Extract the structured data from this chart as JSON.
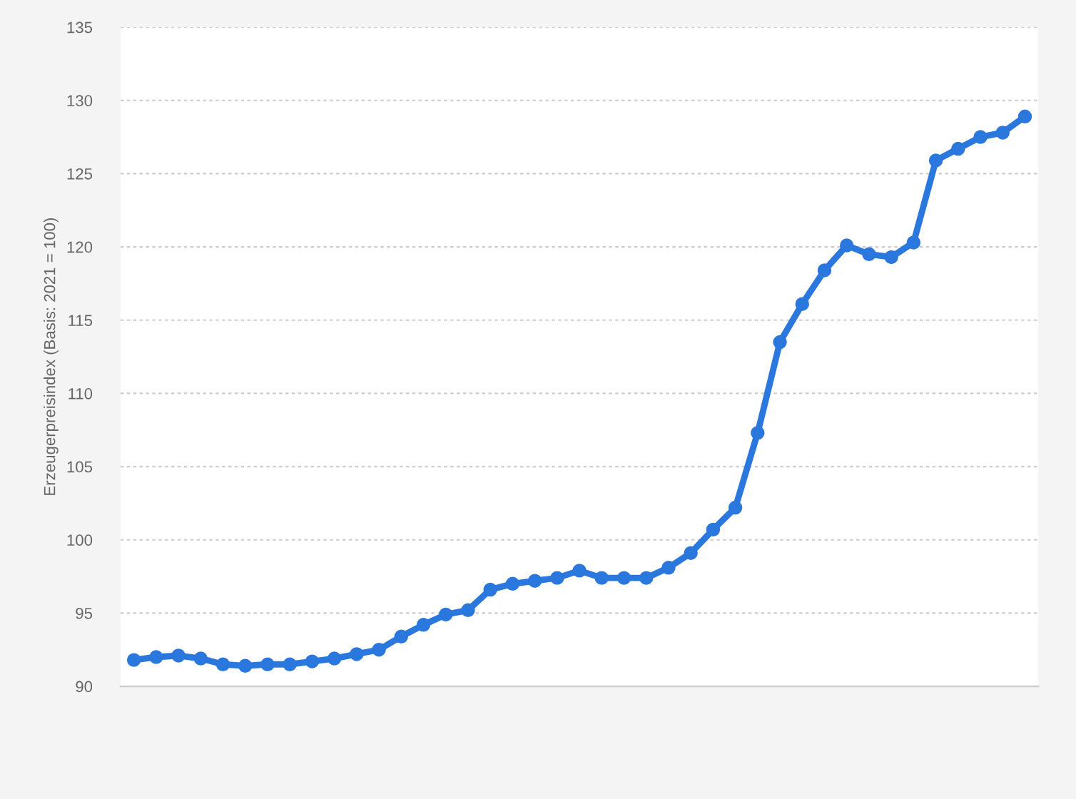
{
  "chart_data": {
    "type": "line",
    "ylabel": "Erzeugerpreisindex (Basis: 2021 = 100)",
    "categories": [
      null,
      null,
      null,
      null,
      null,
      null,
      null,
      null,
      null,
      null,
      null,
      null,
      null,
      null,
      null,
      null,
      null,
      null,
      null,
      null,
      null,
      null,
      null,
      null,
      null,
      null,
      null,
      null,
      null,
      null,
      null,
      null,
      null,
      null,
      null,
      null,
      null,
      null,
      null,
      null,
      null
    ],
    "series": [
      {
        "color": "#2a78de",
        "values": [
          91.8,
          92.0,
          92.1,
          91.9,
          91.5,
          91.4,
          91.5,
          91.5,
          91.7,
          91.9,
          92.2,
          92.5,
          93.4,
          94.2,
          94.9,
          95.2,
          96.6,
          97.0,
          97.2,
          97.4,
          97.9,
          97.4,
          97.4,
          97.4,
          98.1,
          99.1,
          100.7,
          102.2,
          107.3,
          113.5,
          116.1,
          118.4,
          120.1,
          119.5,
          119.3,
          120.3,
          125.9,
          126.7,
          127.5,
          127.8,
          128.9
        ]
      }
    ],
    "ylim": [
      90,
      135
    ],
    "yticks": [
      90,
      95,
      100,
      105,
      110,
      115,
      120,
      125,
      130,
      135
    ],
    "grid": "y",
    "marker": "circle",
    "line_style": "solid",
    "tick_labels": "y"
  }
}
